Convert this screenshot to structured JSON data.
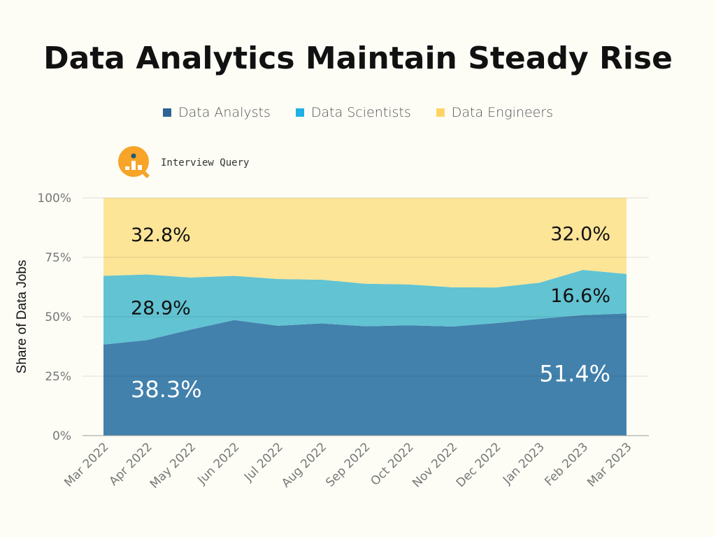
{
  "chart_data": {
    "type": "area",
    "stacked": true,
    "title": "Data Analytics Maintain Steady Rise",
    "ylabel": "Share of Data Jobs",
    "xlabel": "",
    "ylim": [
      0,
      100
    ],
    "yticks": [
      "0%",
      "25%",
      "50%",
      "75%",
      "100%"
    ],
    "ytick_values": [
      0,
      25,
      50,
      75,
      100
    ],
    "categories": [
      "Mar 2022",
      "Apr 2022",
      "May 2022",
      "Jun 2022",
      "Jul 2022",
      "Aug 2022",
      "Sep 2022",
      "Oct 2022",
      "Nov 2022",
      "Dec 2022",
      "Jan 2023",
      "Feb 2023",
      "Mar 2023"
    ],
    "series": [
      {
        "name": "Data Analysts",
        "color": "#4281ac",
        "legend_color": "#2e6396",
        "values": [
          38.3,
          40.2,
          44.6,
          48.6,
          46.2,
          47.2,
          46.0,
          46.4,
          45.9,
          47.3,
          49.1,
          50.7,
          51.4
        ]
      },
      {
        "name": "Data Scientists",
        "color": "#62c3d2",
        "legend_color": "#1fb0e6",
        "values": [
          28.9,
          27.6,
          21.9,
          18.6,
          19.7,
          18.4,
          17.9,
          17.2,
          16.5,
          15.0,
          15.2,
          19.0,
          16.6
        ]
      },
      {
        "name": "Data Engineers",
        "color": "#fde597",
        "legend_color": "#fdd567",
        "values": [
          32.8,
          32.2,
          33.5,
          32.8,
          34.1,
          34.4,
          36.1,
          36.4,
          37.6,
          37.7,
          35.7,
          30.3,
          32.0
        ]
      }
    ],
    "annotations": [
      {
        "text": "38.3%",
        "series": 0,
        "point": 0
      },
      {
        "text": "28.9%",
        "series": 1,
        "point": 0
      },
      {
        "text": "32.8%",
        "series": 2,
        "point": 0
      },
      {
        "text": "51.4%",
        "series": 0,
        "point": 12
      },
      {
        "text": "16.6%",
        "series": 1,
        "point": 12
      },
      {
        "text": "32.0%",
        "series": 2,
        "point": 12
      }
    ],
    "legend_position": "top-center",
    "grid": true
  },
  "logo": {
    "text": "Interview Query"
  }
}
